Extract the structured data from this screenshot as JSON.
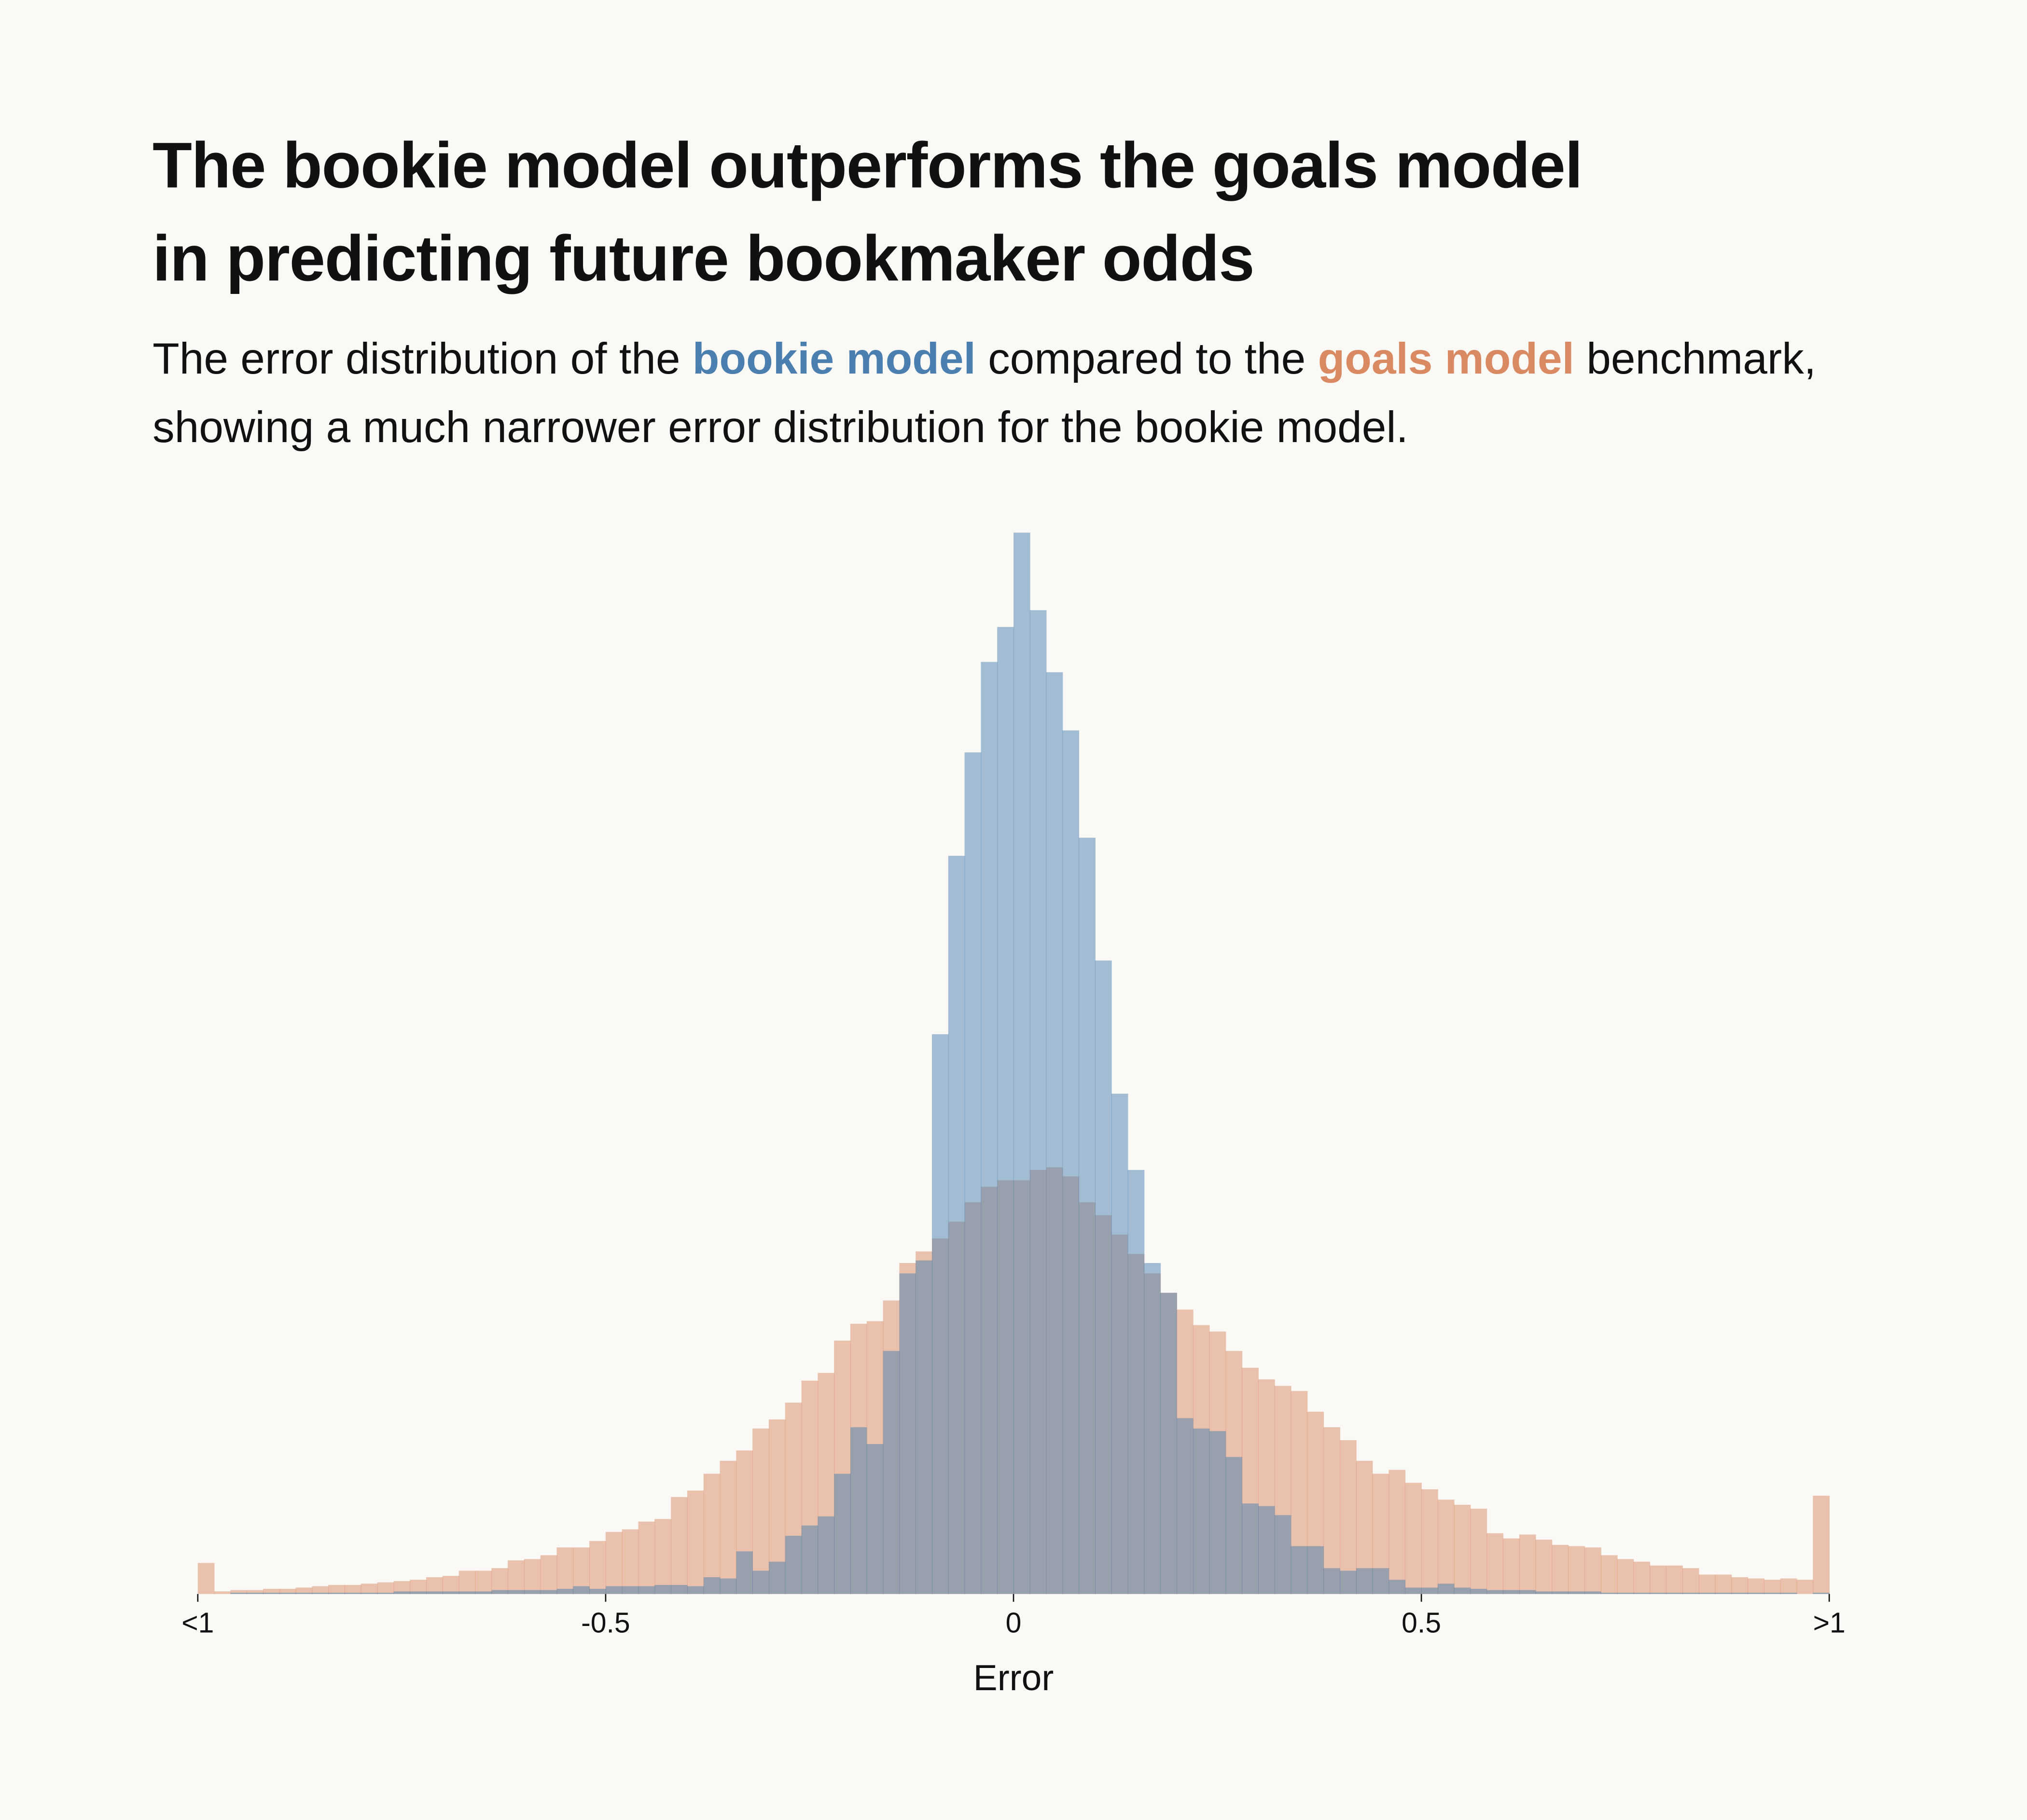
{
  "chart_data": {
    "type": "histogram",
    "title": [
      "The bookie model outperforms the goals model",
      "in predicting future bookmaker odds"
    ],
    "subtitle": [
      "The error distribution of the",
      "compared to the",
      "benchmark, showing a much narrower error distribution for the bookie model."
    ],
    "xlabel": "Error",
    "bins": [
      -1,
      -0.98,
      -0.96,
      -0.94,
      -0.92,
      -0.9,
      -0.88,
      -0.86,
      -0.84,
      -0.82,
      -0.8,
      -0.78,
      -0.76,
      -0.74,
      -0.72,
      -0.7,
      -0.68,
      -0.66,
      -0.64,
      -0.62,
      -0.6,
      -0.58,
      -0.56,
      -0.54,
      -0.52,
      -0.5,
      -0.48,
      -0.46,
      -0.44,
      -0.42,
      -0.4,
      -0.38,
      -0.36,
      -0.34,
      -0.32,
      -0.3,
      -0.28,
      -0.26,
      -0.24,
      -0.22,
      -0.2,
      -0.18,
      -0.16,
      -0.14,
      -0.12,
      -0.1,
      -0.08,
      -0.06,
      -0.04,
      -0.02,
      0,
      0.02,
      0.04,
      0.06,
      0.08,
      0.1,
      0.12,
      0.14,
      0.16,
      0.18,
      0.2,
      0.22,
      0.24,
      0.26,
      0.28,
      0.3,
      0.32,
      0.34,
      0.36,
      0.38,
      0.4,
      0.42,
      0.44,
      0.46,
      0.48,
      0.5,
      0.52,
      0.54,
      0.56,
      0.58,
      0.6,
      0.62,
      0.64,
      0.66,
      0.68,
      0.7,
      0.72,
      0.74,
      0.76,
      0.78,
      0.8,
      0.82,
      0.84,
      0.86,
      0.88,
      0.9,
      0.92,
      0.94,
      0.96,
      0.98,
      1
    ],
    "series": [
      {
        "name": "goals model",
        "color": "#d98a62",
        "values": [
          24,
          2,
          3,
          3,
          4,
          4,
          5,
          6,
          7,
          7,
          8,
          9,
          10,
          11,
          13,
          14,
          18,
          18,
          20,
          26,
          27,
          30,
          36,
          36,
          41,
          48,
          50,
          56,
          58,
          75,
          80,
          93,
          103,
          111,
          128,
          135,
          148,
          165,
          171,
          196,
          209,
          211,
          227,
          256,
          265,
          275,
          288,
          303,
          315,
          320,
          320,
          328,
          330,
          323,
          303,
          293,
          278,
          263,
          248,
          233,
          220,
          208,
          203,
          188,
          175,
          166,
          161,
          157,
          141,
          129,
          119,
          103,
          93,
          96,
          86,
          81,
          73,
          69,
          66,
          47,
          43,
          46,
          42,
          38,
          37,
          36,
          30,
          27,
          25,
          22,
          22,
          20,
          15,
          15,
          13,
          12,
          11,
          12,
          11,
          76
        ]
      },
      {
        "name": "bookie model",
        "color": "#4a7fb0",
        "values": [
          0,
          0,
          1,
          1,
          1,
          1,
          1,
          1,
          1,
          1,
          1,
          1,
          2,
          2,
          2,
          2,
          2,
          2,
          3,
          3,
          3,
          3,
          4,
          6,
          4,
          6,
          6,
          6,
          7,
          7,
          6,
          13,
          12,
          33,
          18,
          25,
          45,
          53,
          60,
          93,
          129,
          116,
          188,
          248,
          258,
          433,
          571,
          651,
          721,
          748,
          821,
          761,
          713,
          668,
          585,
          490,
          387,
          328,
          256,
          233,
          136,
          128,
          126,
          106,
          70,
          68,
          61,
          37,
          37,
          20,
          18,
          20,
          20,
          11,
          5,
          5,
          8,
          5,
          4,
          3,
          3,
          3,
          2,
          2,
          2,
          2,
          1,
          1,
          1,
          1,
          1,
          1,
          1,
          1,
          1,
          1,
          1,
          1,
          0,
          1
        ]
      }
    ],
    "xlim": [
      -1,
      1
    ],
    "xticks": [
      {
        "value": -1,
        "label": "<1"
      },
      -0.5,
      0,
      0.5,
      {
        "value": 1,
        "label": ">1"
      }
    ],
    "ylim": [
      0,
      830
    ]
  }
}
